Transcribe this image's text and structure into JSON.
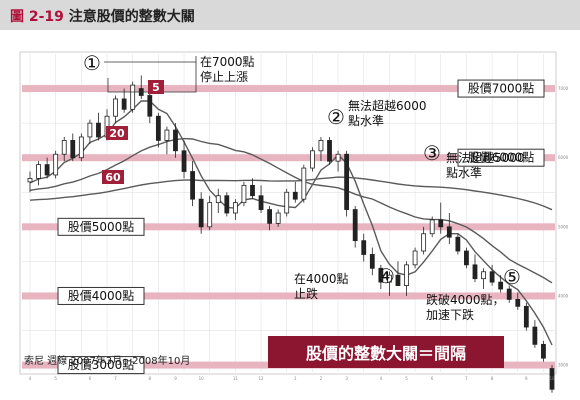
{
  "figure": {
    "number": "圖 2-19",
    "title": "注意股價的整數大關",
    "source": "索尼 週線 2007年3月～2008年10月",
    "banner": "股價的整數大關＝間隔"
  },
  "chart_data": {
    "type": "candlestick",
    "title": "注意股價的整數大關",
    "subtitle": "索尼 週線 2007年3月～2008年10月",
    "period": "weekly",
    "x_range": [
      "2007-03",
      "2008-10"
    ],
    "ylim": [
      2900,
      7500
    ],
    "grid": true,
    "x_tick_labels": [
      "4",
      "5",
      "6",
      "7",
      "8",
      "9",
      "10",
      "11",
      "12",
      "1",
      "2",
      "3",
      "4",
      "5",
      "6",
      "7",
      "8",
      "9",
      "10"
    ],
    "y_tick_labels": [
      "7000",
      "6000",
      "5000",
      "4000",
      "3000"
    ],
    "moving_averages": [
      {
        "name": "5",
        "period": 5,
        "color": "#555555"
      },
      {
        "name": "20",
        "period": 20,
        "color": "#555555"
      },
      {
        "name": "60",
        "period": 60,
        "color": "#555555"
      }
    ],
    "ma_badges": [
      {
        "label": "5",
        "color": "#a0203a"
      },
      {
        "label": "20",
        "color": "#a0203a"
      },
      {
        "label": "60",
        "color": "#a0203a"
      }
    ],
    "candles": [
      [
        5650,
        5800,
        5500,
        5700
      ],
      [
        5700,
        5950,
        5600,
        5900
      ],
      [
        5900,
        6000,
        5700,
        5750
      ],
      [
        5750,
        6100,
        5700,
        6050
      ],
      [
        6050,
        6300,
        5950,
        6250
      ],
      [
        6250,
        6350,
        5950,
        6000
      ],
      [
        6000,
        6350,
        5950,
        6300
      ],
      [
        6300,
        6550,
        6200,
        6500
      ],
      [
        6500,
        6650,
        6250,
        6300
      ],
      [
        6300,
        6700,
        6250,
        6600
      ],
      [
        6600,
        6900,
        6500,
        6850
      ],
      [
        6850,
        7000,
        6650,
        6700
      ],
      [
        6700,
        7100,
        6650,
        7050
      ],
      [
        7000,
        7190,
        6850,
        6900
      ],
      [
        6900,
        6950,
        6500,
        6600
      ],
      [
        6600,
        6650,
        6150,
        6250
      ],
      [
        6250,
        6450,
        6050,
        6400
      ],
      [
        6400,
        6500,
        6000,
        6100
      ],
      [
        6100,
        6250,
        5700,
        5800
      ],
      [
        5800,
        5950,
        5300,
        5400
      ],
      [
        5400,
        5500,
        4900,
        5000
      ],
      [
        5000,
        5450,
        4950,
        5350
      ],
      [
        5350,
        5550,
        5200,
        5450
      ],
      [
        5450,
        5500,
        5150,
        5200
      ],
      [
        5200,
        5400,
        5100,
        5350
      ],
      [
        5350,
        5650,
        5300,
        5600
      ],
      [
        5600,
        5700,
        5400,
        5450
      ],
      [
        5450,
        5600,
        5200,
        5250
      ],
      [
        5250,
        5300,
        4950,
        5050
      ],
      [
        5050,
        5250,
        5000,
        5200
      ],
      [
        5200,
        5550,
        5150,
        5500
      ],
      [
        5500,
        5650,
        5350,
        5400
      ],
      [
        5400,
        5900,
        5350,
        5850
      ],
      [
        5850,
        6150,
        5800,
        6100
      ],
      [
        6100,
        6300,
        5950,
        6250
      ],
      [
        6250,
        6300,
        5900,
        5950
      ],
      [
        5950,
        6100,
        5800,
        6050
      ],
      [
        6050,
        6100,
        5150,
        5250
      ],
      [
        5250,
        5300,
        4700,
        4800
      ],
      [
        4800,
        4900,
        4500,
        4600
      ],
      [
        4600,
        4700,
        4300,
        4400
      ],
      [
        4400,
        4450,
        4100,
        4200
      ],
      [
        4200,
        4350,
        4000,
        4300
      ],
      [
        4300,
        4500,
        4150,
        4150
      ],
      [
        4150,
        4500,
        4000,
        4450
      ],
      [
        4450,
        4700,
        4400,
        4650
      ],
      [
        4650,
        5000,
        4600,
        4900
      ],
      [
        4900,
        5150,
        4850,
        5100
      ],
      [
        5100,
        5350,
        4900,
        5000
      ],
      [
        5000,
        5200,
        4750,
        4850
      ],
      [
        4850,
        4900,
        4600,
        4650
      ],
      [
        4650,
        4700,
        4400,
        4450
      ],
      [
        4450,
        4600,
        4200,
        4250
      ],
      [
        4250,
        4400,
        4100,
        4350
      ],
      [
        4350,
        4450,
        4150,
        4200
      ],
      [
        4200,
        4300,
        4050,
        4100
      ],
      [
        4100,
        4150,
        3900,
        3950
      ],
      [
        3950,
        4050,
        3800,
        3850
      ],
      [
        3850,
        3900,
        3500,
        3550
      ],
      [
        3550,
        3650,
        3250,
        3300
      ],
      [
        3300,
        3350,
        3050,
        3100
      ],
      [
        2950,
        3000,
        2600,
        2650
      ]
    ],
    "price_levels": [
      {
        "value": 7000,
        "label": "股價7000點",
        "side": "right"
      },
      {
        "value": 6000,
        "label": "股價6000點",
        "side": "right"
      },
      {
        "value": 5000,
        "label": "股價5000點",
        "side": "left"
      },
      {
        "value": 4000,
        "label": "股價4000點",
        "side": "left"
      },
      {
        "value": 3000,
        "label": "股價3000點",
        "side": "left"
      }
    ],
    "annotations": [
      {
        "marker": "①",
        "lines": [
          "在7000點",
          "停止上漲"
        ]
      },
      {
        "marker": "②",
        "lines": [
          "無法超越6000",
          "點水準"
        ]
      },
      {
        "marker": "③",
        "lines": [
          "無法超越5000",
          "點水準"
        ]
      },
      {
        "marker": "④",
        "lines": [
          "在4000點",
          "止跌"
        ]
      },
      {
        "marker": "⑤",
        "lines": [
          "跌破4000點，",
          "加速下跌"
        ]
      }
    ]
  },
  "colors": {
    "level_band": "#e7b4bf",
    "level_border": "#333333",
    "badge": "#a0203a",
    "banner_bg": "#8c1530",
    "banner_text": "#ffffff",
    "candle": "#222222",
    "ma": "#5a5a5a",
    "grid": "#dddddd",
    "header_bg": "#d9d9d9",
    "accent": "#b0103a"
  }
}
